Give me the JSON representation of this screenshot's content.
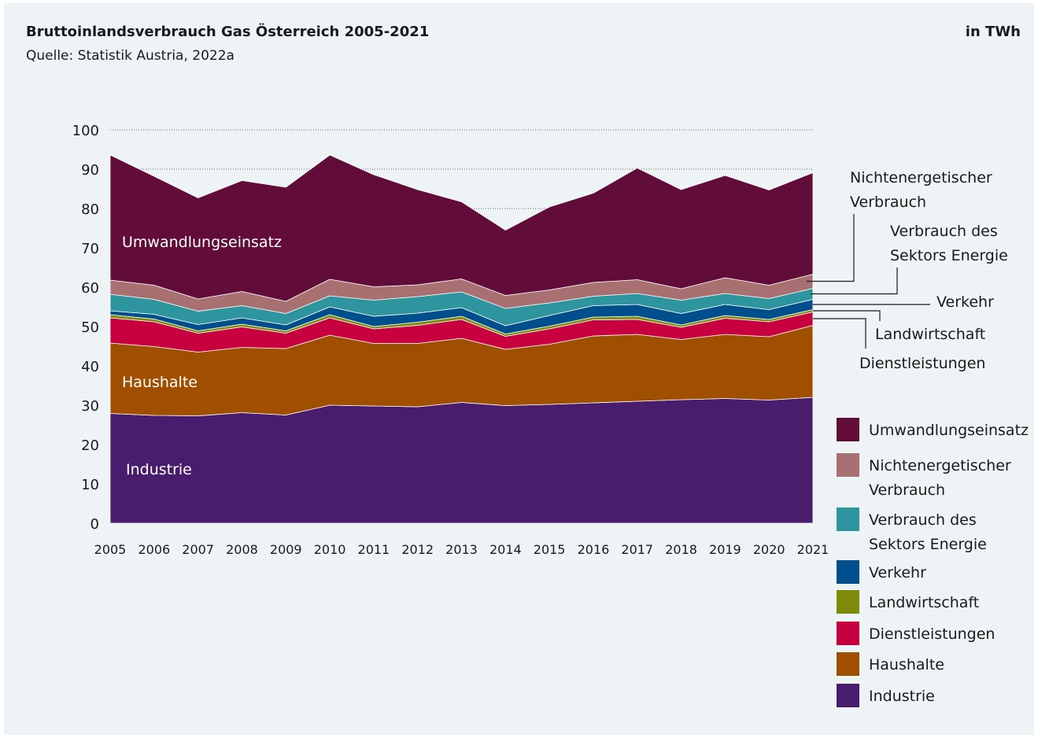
{
  "header": {
    "title": "Bruttoinlandsverbrauch Gas Österreich 2005-2021",
    "subtitle": "Quelle: Statistik Austria, 2022a",
    "unit": "in TWh"
  },
  "chart_data": {
    "type": "area",
    "stacked": true,
    "title": "Bruttoinlandsverbrauch Gas Österreich 2005-2021",
    "ylim": [
      0,
      100
    ],
    "yticks": [
      0,
      10,
      20,
      30,
      40,
      50,
      60,
      70,
      80,
      90,
      100
    ],
    "grid": "dotted horizontal lines above the stacked areas",
    "x": [
      "2005",
      "2006",
      "2007",
      "2008",
      "2009",
      "2010",
      "2011",
      "2012",
      "2013",
      "2014",
      "2015",
      "2016",
      "2017",
      "2018",
      "2019",
      "2020",
      "2021"
    ],
    "series": [
      {
        "name": "Industrie",
        "color": "#4a1c6e",
        "values": [
          27.9,
          27.4,
          27.3,
          28.1,
          27.5,
          30.0,
          29.8,
          29.6,
          30.7,
          29.9,
          30.2,
          30.6,
          31.0,
          31.4,
          31.7,
          31.3,
          32.0
        ]
      },
      {
        "name": "Haushalte",
        "color": "#a04f00",
        "values": [
          17.9,
          17.5,
          16.2,
          16.6,
          16.9,
          17.8,
          15.9,
          16.1,
          16.3,
          14.3,
          15.3,
          17.0,
          17.0,
          15.3,
          16.3,
          16.1,
          18.3
        ]
      },
      {
        "name": "Dienstleistungen",
        "color": "#c8003f",
        "values": [
          6.4,
          6.3,
          4.8,
          5.2,
          3.9,
          4.4,
          3.7,
          4.6,
          4.8,
          3.3,
          3.9,
          4.1,
          3.8,
          3.1,
          4.1,
          3.8,
          3.4
        ]
      },
      {
        "name": "Landwirtschaft",
        "color": "#7d8a0a",
        "values": [
          0.8,
          0.7,
          0.6,
          0.7,
          0.6,
          0.8,
          0.6,
          0.8,
          0.8,
          0.6,
          0.7,
          0.7,
          0.8,
          0.6,
          0.7,
          0.6,
          0.6
        ]
      },
      {
        "name": "Verkehr",
        "color": "#004f8c",
        "values": [
          1.0,
          1.2,
          1.6,
          1.6,
          1.5,
          2.0,
          2.6,
          2.3,
          2.2,
          2.1,
          2.7,
          2.9,
          3.0,
          2.9,
          2.8,
          2.5,
          2.6
        ]
      },
      {
        "name": "Verbrauch des Sektors Energie",
        "color": "#2e959e",
        "values": [
          4.2,
          3.8,
          3.4,
          3.1,
          2.9,
          2.8,
          4.1,
          4.2,
          4.0,
          4.4,
          3.2,
          2.4,
          2.8,
          3.4,
          2.8,
          2.8,
          2.8
        ]
      },
      {
        "name": "Nichtenergetischer Verbrauch",
        "color": "#a87070",
        "values": [
          3.6,
          3.6,
          3.1,
          3.6,
          3.1,
          4.2,
          3.4,
          3.0,
          3.3,
          3.3,
          3.3,
          3.5,
          3.5,
          2.9,
          4.0,
          3.4,
          3.6
        ]
      },
      {
        "name": "Umwandlungseinsatz",
        "color": "#620d39",
        "values": [
          31.8,
          27.7,
          25.7,
          28.2,
          29.0,
          31.6,
          28.5,
          24.2,
          19.6,
          16.6,
          21.1,
          22.7,
          28.4,
          25.2,
          26.0,
          24.2,
          25.8
        ]
      }
    ],
    "inline_labels": {
      "Umwandlungseinsatz": "Umwandlungseinsatz",
      "Haushalte": "Haushalte",
      "Industrie": "Industrie"
    },
    "callouts": [
      {
        "series": "Nichtenergetischer Verbrauch",
        "lines": [
          "Nichtenergetischer",
          "Verbrauch"
        ]
      },
      {
        "series": "Verbrauch des Sektors Energie",
        "lines": [
          "Verbrauch des",
          "Sektors Energie"
        ]
      },
      {
        "series": "Verkehr",
        "lines": [
          "Verkehr"
        ]
      },
      {
        "series": "Landwirtschaft",
        "lines": [
          "Landwirtschaft"
        ]
      },
      {
        "series": "Dienstleistungen",
        "lines": [
          "Dienstleistungen"
        ]
      }
    ],
    "legend": {
      "placement": "bottom-right",
      "items": [
        {
          "lines": [
            "Umwandlungseinsatz"
          ],
          "color": "#620d39"
        },
        {
          "lines": [
            "Nichtenergetischer",
            "Verbrauch"
          ],
          "color": "#a87070"
        },
        {
          "lines": [
            "Verbrauch des",
            "Sektors Energie"
          ],
          "color": "#2e959e"
        },
        {
          "lines": [
            "Verkehr"
          ],
          "color": "#004f8c"
        },
        {
          "lines": [
            "Landwirtschaft"
          ],
          "color": "#7d8a0a"
        },
        {
          "lines": [
            "Dienstleistungen"
          ],
          "color": "#c8003f"
        },
        {
          "lines": [
            "Haushalte"
          ],
          "color": "#a04f00"
        },
        {
          "lines": [
            "Industrie"
          ],
          "color": "#4a1c6e"
        }
      ]
    }
  }
}
